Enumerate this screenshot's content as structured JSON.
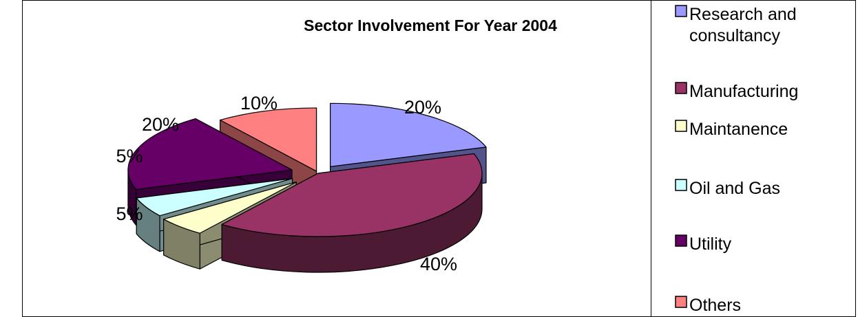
{
  "chart_data": {
    "type": "pie",
    "title": "Sector Involvement For Year 2004",
    "categories": [
      "Research and consultancy",
      "Manufacturing",
      "Maintanence",
      "Oil and Gas",
      "Utility",
      "Others"
    ],
    "legend_lines": [
      [
        "Research and",
        "consultancy"
      ],
      [
        "Manufacturing"
      ],
      [
        "Maintanence"
      ],
      [
        "Oil and Gas"
      ],
      [
        "Utility"
      ],
      [
        "Others"
      ]
    ],
    "values": [
      20,
      40,
      5,
      5,
      20,
      10
    ],
    "labels": [
      "20%",
      "40%",
      "5%",
      "5%",
      "20%",
      "10%"
    ],
    "colors": [
      "#9999ff",
      "#993366",
      "#ffffcc",
      "#ccffff",
      "#660066",
      "#ff8080"
    ],
    "exploded": true,
    "three_d": true,
    "legend_position": "right"
  }
}
